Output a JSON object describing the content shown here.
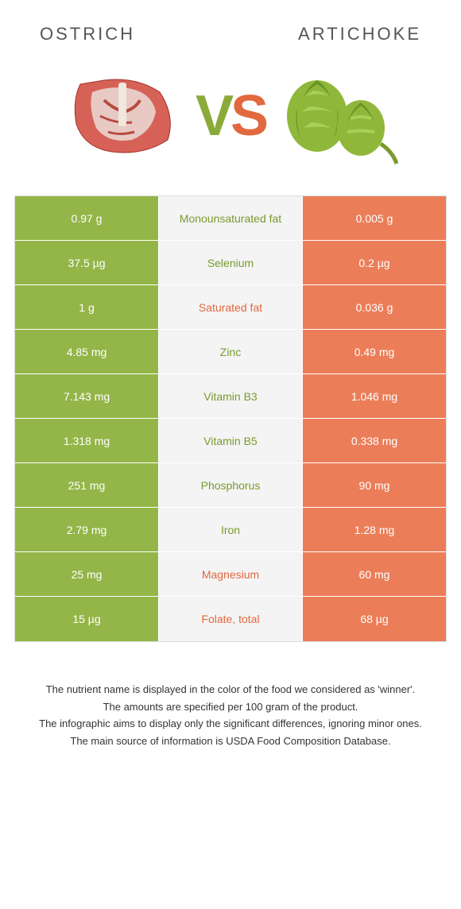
{
  "header": {
    "left": "Ostrich",
    "right": "Artichoke"
  },
  "vs": {
    "v": "V",
    "s": "S"
  },
  "colors": {
    "left": "#94b548",
    "right": "#eb7e59",
    "mid_bg": "#f5f5f5",
    "winner_left": "#7a9a2e",
    "winner_right": "#e2683f"
  },
  "rows": [
    {
      "left": "0.97 g",
      "label": "Monounsaturated fat",
      "right": "0.005 g",
      "winner": "left"
    },
    {
      "left": "37.5 µg",
      "label": "Selenium",
      "right": "0.2 µg",
      "winner": "left"
    },
    {
      "left": "1 g",
      "label": "Saturated fat",
      "right": "0.036 g",
      "winner": "right"
    },
    {
      "left": "4.85 mg",
      "label": "Zinc",
      "right": "0.49 mg",
      "winner": "left"
    },
    {
      "left": "7.143 mg",
      "label": "Vitamin B3",
      "right": "1.046 mg",
      "winner": "left"
    },
    {
      "left": "1.318 mg",
      "label": "Vitamin B5",
      "right": "0.338 mg",
      "winner": "left"
    },
    {
      "left": "251 mg",
      "label": "Phosphorus",
      "right": "90 mg",
      "winner": "left"
    },
    {
      "left": "2.79 mg",
      "label": "Iron",
      "right": "1.28 mg",
      "winner": "left"
    },
    {
      "left": "25 mg",
      "label": "Magnesium",
      "right": "60 mg",
      "winner": "right"
    },
    {
      "left": "15 µg",
      "label": "Folate, total",
      "right": "68 µg",
      "winner": "right"
    }
  ],
  "footer": [
    "The nutrient name is displayed in the color of the food we considered as 'winner'.",
    "The amounts are specified per 100 gram of the product.",
    "The infographic aims to display only the significant differences, ignoring minor ones.",
    "The main source of information is USDA Food Composition Database."
  ]
}
